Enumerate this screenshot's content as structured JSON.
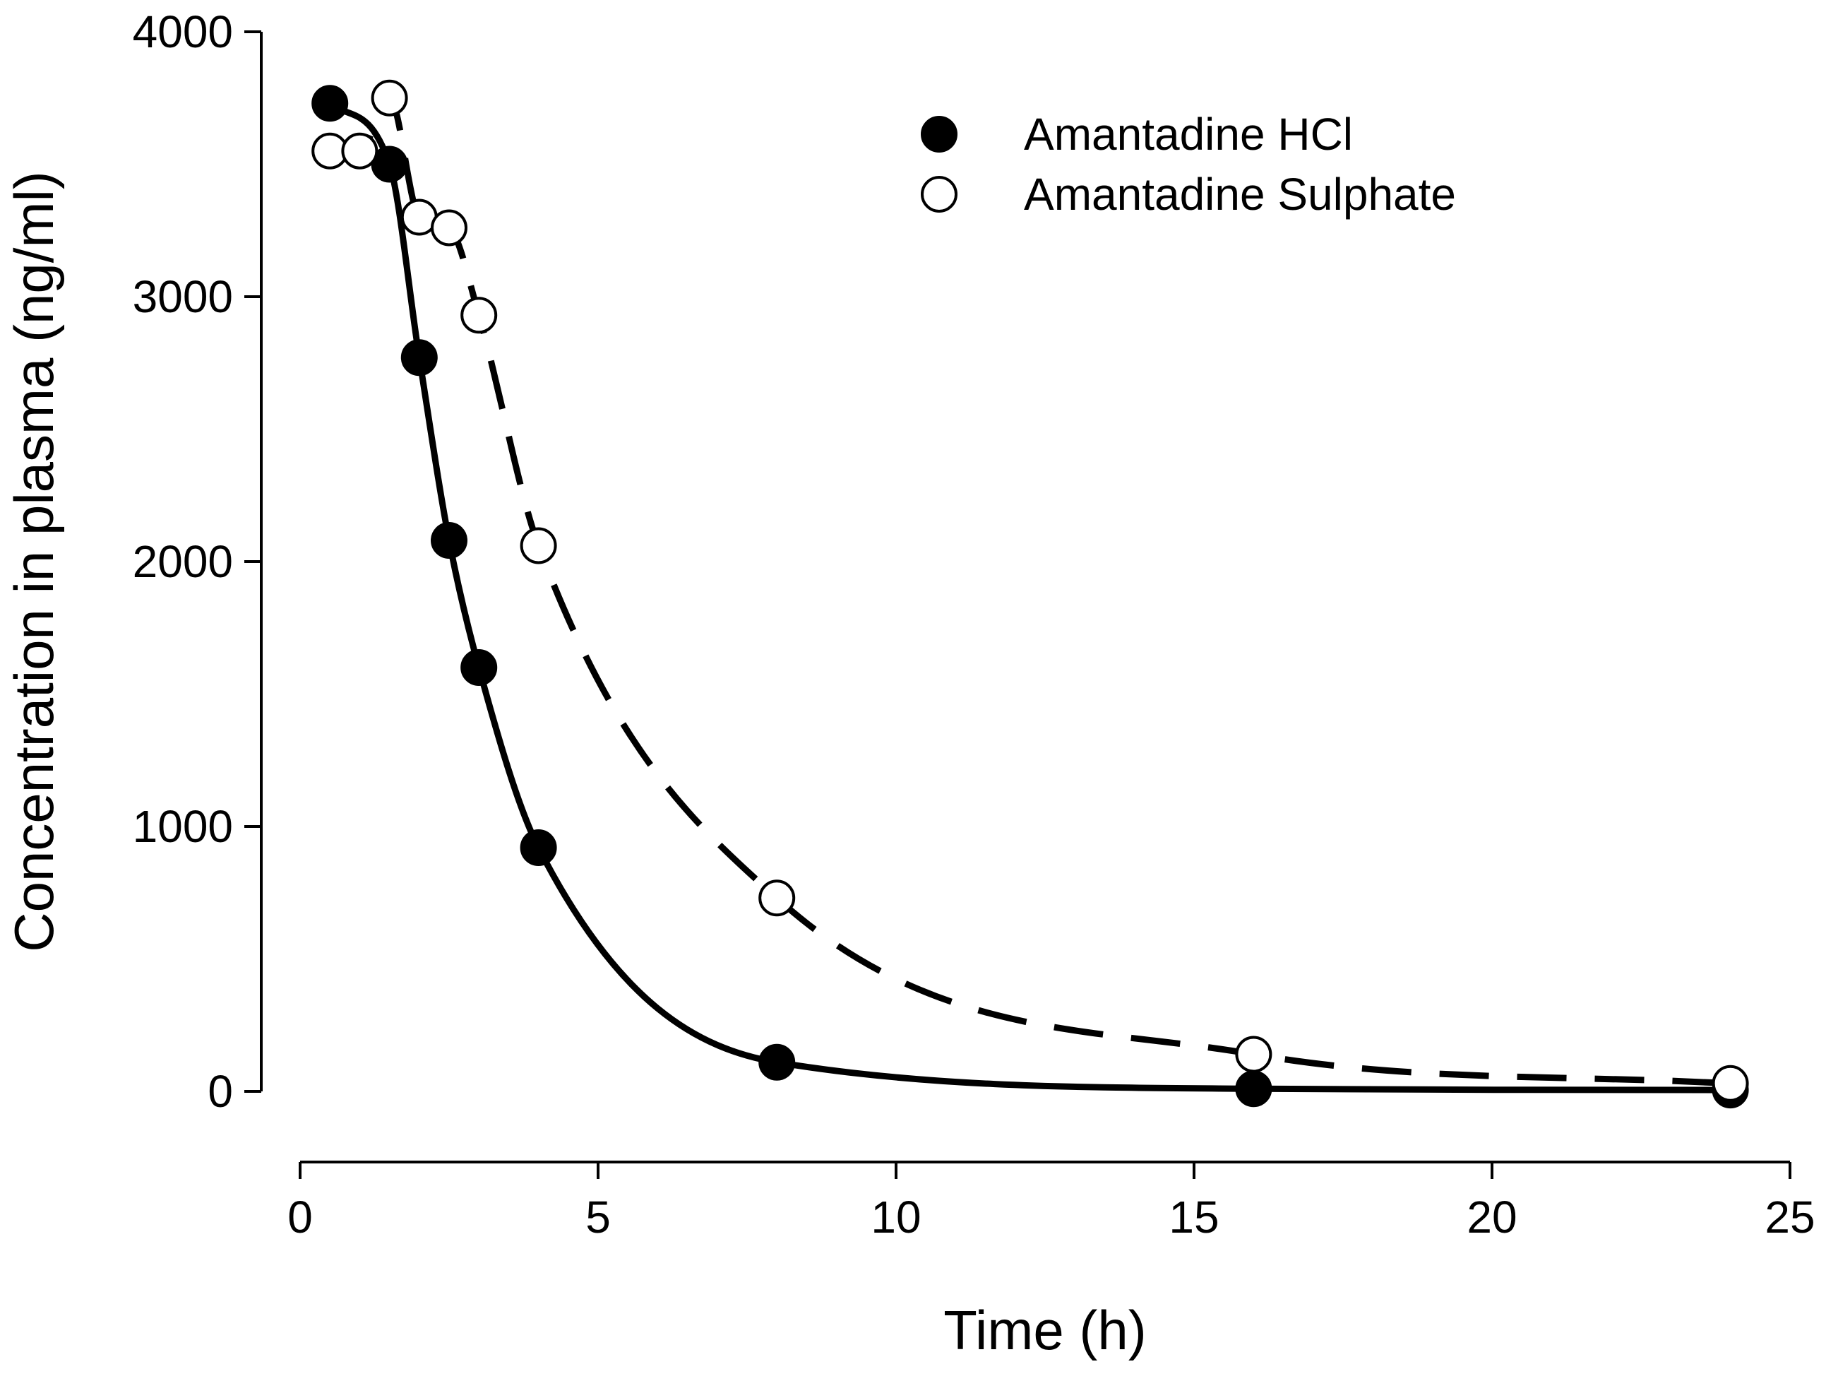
{
  "chart_data": {
    "type": "line",
    "title": "",
    "xlabel": "Time (h)",
    "ylabel": "Concentration in plasma (ng/ml)",
    "xlim": [
      0,
      25
    ],
    "ylim": [
      0,
      4000
    ],
    "x_ticks": [
      0,
      5,
      10,
      15,
      20,
      25
    ],
    "y_ticks": [
      0,
      1000,
      2000,
      3000,
      4000
    ],
    "x_tick_labels": [
      "0",
      "5",
      "10",
      "15",
      "20",
      "25"
    ],
    "y_tick_labels": [
      "0",
      "1000",
      "2000",
      "3000",
      "4000"
    ],
    "grid": false,
    "legend_position": "top-right",
    "series": [
      {
        "name": "Amantadine HCl",
        "marker": "filled-circle",
        "line_style": "solid",
        "color": "#000000",
        "x": [
          0.5,
          1.5,
          2,
          2.5,
          3,
          4,
          8,
          16,
          24
        ],
        "y": [
          3730,
          3500,
          2770,
          2080,
          1600,
          920,
          110,
          10,
          5
        ]
      },
      {
        "name": "Amantadine Sulphate",
        "marker": "open-circle",
        "line_style": "dashed",
        "color": "#000000",
        "x": [
          0.5,
          1,
          1.5,
          2,
          2.5,
          3,
          4,
          8,
          16,
          24
        ],
        "y": [
          3550,
          3550,
          3750,
          3300,
          3260,
          2930,
          2060,
          730,
          140,
          30
        ]
      }
    ]
  }
}
